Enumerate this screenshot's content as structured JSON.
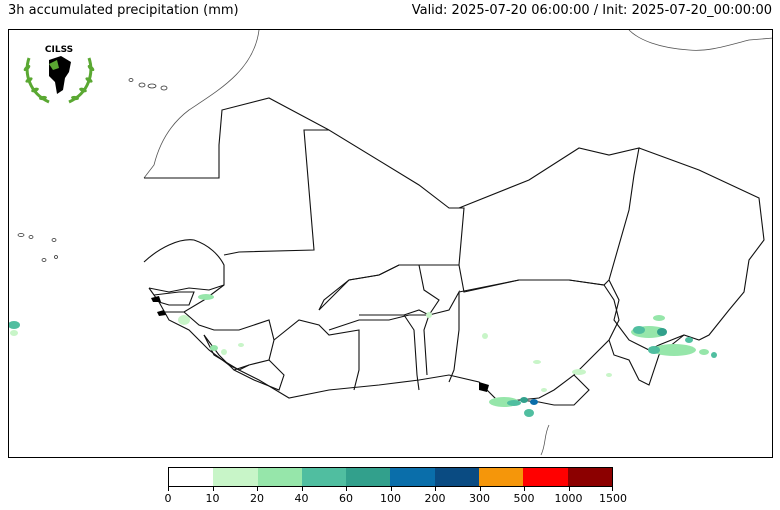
{
  "header": {
    "title": "3h accumulated precipitation (mm)",
    "valid_info": "Valid: 2025-07-20 06:00:00 / Init: 2025-07-20_00:00:00"
  },
  "logo": {
    "text": "CILSS",
    "icon": "cilss-logo-africa-laurel"
  },
  "map": {
    "region": "West Africa",
    "precip_colors": [
      "#b9f0c0",
      "#5fc8a0",
      "#2e9e8a",
      "#0d6fa8"
    ]
  },
  "colorbar": {
    "colors": [
      "#ffffff",
      "#c8f5c8",
      "#96e6aa",
      "#50bea0",
      "#32a08c",
      "#0a6eaa",
      "#0a4b82",
      "#f5960a",
      "#ff0000",
      "#8c0000"
    ],
    "ticks": [
      "0",
      "10",
      "20",
      "40",
      "60",
      "100",
      "200",
      "300",
      "500",
      "1000",
      "1500"
    ]
  }
}
